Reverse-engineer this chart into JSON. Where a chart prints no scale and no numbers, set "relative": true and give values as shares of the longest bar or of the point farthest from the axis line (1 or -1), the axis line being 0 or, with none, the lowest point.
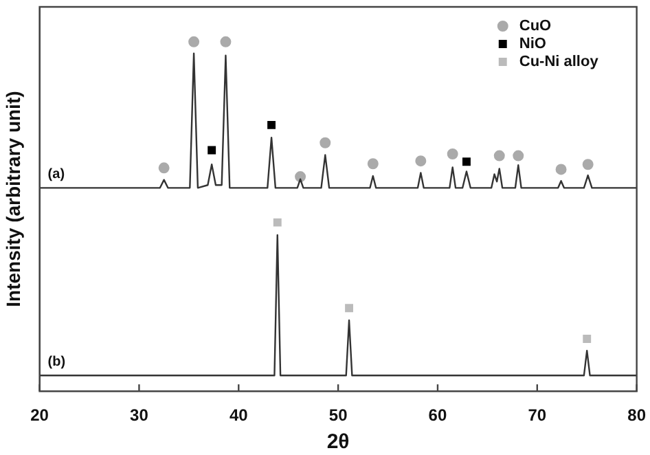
{
  "chart_data": {
    "type": "line",
    "relative": true,
    "xlabel": "2θ",
    "ylabel": "Intensity (arbitrary unit)",
    "xlim": [
      20,
      80
    ],
    "xticks": [
      20,
      30,
      40,
      50,
      60,
      70,
      80
    ],
    "legend": "top right",
    "line_style": "solid",
    "series": [
      {
        "name": "(a)",
        "color": "#333333",
        "x": [
          20,
          32.1,
          32.5,
          32.9,
          35.1,
          35.5,
          35.9,
          36.9,
          37.3,
          37.7,
          38.3,
          38.7,
          39.1,
          42.9,
          43.3,
          43.7,
          45.9,
          46.2,
          46.5,
          48.3,
          48.7,
          49.1,
          53.2,
          53.5,
          53.8,
          58,
          58.3,
          58.6,
          61.2,
          61.5,
          61.8,
          62.5,
          62.9,
          63.3,
          65.4,
          65.7,
          65.95,
          66.2,
          66.5,
          67.8,
          68.1,
          68.4,
          72.1,
          72.4,
          72.7,
          74.7,
          75.1,
          75.5,
          80
        ],
        "values": [
          0.582,
          0.582,
          0.605,
          0.582,
          0.582,
          0.967,
          0.582,
          0.59,
          0.649,
          0.59,
          0.59,
          0.961,
          0.582,
          0.582,
          0.726,
          0.582,
          0.582,
          0.607,
          0.582,
          0.582,
          0.676,
          0.582,
          0.582,
          0.616,
          0.582,
          0.582,
          0.625,
          0.582,
          0.582,
          0.641,
          0.582,
          0.582,
          0.629,
          0.582,
          0.582,
          0.621,
          0.6,
          0.637,
          0.582,
          0.582,
          0.647,
          0.582,
          0.582,
          0.602,
          0.582,
          0.582,
          0.618,
          0.582,
          0.582
        ]
      },
      {
        "name": "(b)",
        "color": "#333333",
        "x": [
          20,
          43.6,
          43.9,
          44.2,
          50.8,
          51.1,
          51.4,
          74.7,
          75,
          75.3,
          80
        ],
        "values": [
          0.045,
          0.045,
          0.447,
          0.045,
          0.045,
          0.203,
          0.045,
          0.045,
          0.116,
          0.045,
          0.045
        ]
      },
      {
        "name": "CuO",
        "type": "scatter",
        "marker": "circle",
        "color": "#aaaaaa",
        "x": [
          32.5,
          35.5,
          38.7,
          46.2,
          48.7,
          53.5,
          58.3,
          61.5,
          66.2,
          68.1,
          72.4,
          75.1
        ],
        "values": [
          0.639,
          1,
          1,
          0.614,
          0.711,
          0.651,
          0.659,
          0.679,
          0.674,
          0.674,
          0.635,
          0.649
        ]
      },
      {
        "name": "NiO",
        "type": "scatter",
        "marker": "square",
        "color": "#000000",
        "x": [
          37.3,
          43.3,
          62.9
        ],
        "values": [
          0.69,
          0.762,
          0.657
        ]
      },
      {
        "name": "Cu-Ni alloy",
        "type": "scatter",
        "marker": "square",
        "color": "#bbbbbb",
        "x": [
          43.9,
          51.1,
          75
        ],
        "values": [
          0.483,
          0.238,
          0.15
        ]
      }
    ]
  }
}
